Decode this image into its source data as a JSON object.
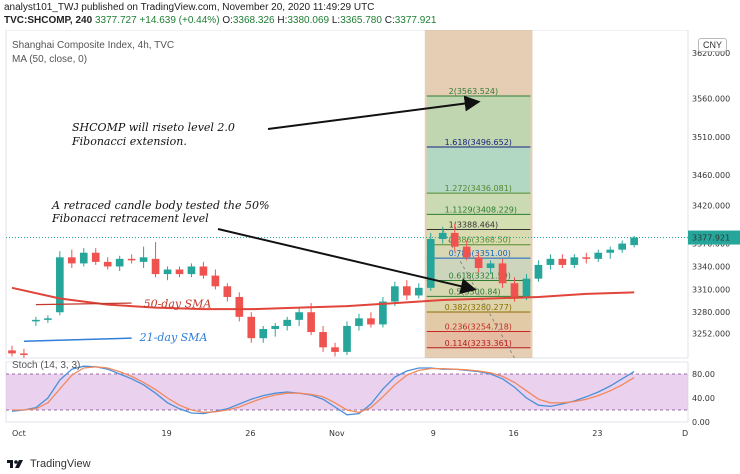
{
  "header": {
    "line1": "analyst101_TWJ published on TradingView.com, November 20, 2020 11:49:29 UTC",
    "symbol": "TVC:SHCOMP, 240",
    "last": "3377.727",
    "change": "+14.639 (+0.44%)",
    "o_label": "O:",
    "o": "3368.326",
    "h_label": "H:",
    "h": "3380.069",
    "l_label": "L:",
    "l": "3365.780",
    "c_label": "C:",
    "c": "3377.921"
  },
  "legend": {
    "title": "Shanghai Composite Index, 4h, TVC",
    "ma": "MA (50, close, 0)",
    "stoch": "Stoch (14, 3, 3)"
  },
  "currency": "CNY",
  "price_tag": "3377.921",
  "footer": {
    "brand": "TradingView"
  },
  "colors": {
    "up": "#26a69a",
    "down": "#ef5350",
    "ma": "#e0443a",
    "stoch_k": "#4a90d9",
    "stoch_d": "#f08a5d",
    "fib_band": "#d2a679"
  },
  "chart_data": [
    {
      "type": "candlestick",
      "title": "Shanghai Composite Index, 4h, TVC",
      "ylim": [
        3220,
        3650
      ],
      "y_ticks": [
        "3620.000",
        "3560.000",
        "3510.000",
        "3460.000",
        "3420.000",
        "3370.000",
        "3340.000",
        "3310.000",
        "3280.000",
        "3252.000"
      ],
      "x_ticks": [
        "Oct",
        "19",
        "26",
        "Nov",
        "9",
        "16",
        "23",
        "D"
      ],
      "x_tick_pos": [
        0.5,
        13,
        20,
        27,
        35.5,
        42,
        49,
        56.5
      ],
      "candles": [
        {
          "o": 3230,
          "h": 3236,
          "l": 3222,
          "c": 3226
        },
        {
          "o": 3226,
          "h": 3232,
          "l": 3220,
          "c": 3224
        },
        {
          "o": 3268,
          "h": 3274,
          "l": 3262,
          "c": 3270
        },
        {
          "o": 3270,
          "h": 3276,
          "l": 3266,
          "c": 3272
        },
        {
          "o": 3280,
          "h": 3360,
          "l": 3276,
          "c": 3352
        },
        {
          "o": 3352,
          "h": 3362,
          "l": 3338,
          "c": 3344
        },
        {
          "o": 3344,
          "h": 3364,
          "l": 3340,
          "c": 3358
        },
        {
          "o": 3358,
          "h": 3364,
          "l": 3342,
          "c": 3346
        },
        {
          "o": 3346,
          "h": 3352,
          "l": 3336,
          "c": 3340
        },
        {
          "o": 3340,
          "h": 3354,
          "l": 3334,
          "c": 3350
        },
        {
          "o": 3350,
          "h": 3356,
          "l": 3344,
          "c": 3348
        },
        {
          "o": 3346,
          "h": 3366,
          "l": 3338,
          "c": 3352
        },
        {
          "o": 3350,
          "h": 3372,
          "l": 3326,
          "c": 3330
        },
        {
          "o": 3330,
          "h": 3340,
          "l": 3322,
          "c": 3336
        },
        {
          "o": 3336,
          "h": 3340,
          "l": 3326,
          "c": 3330
        },
        {
          "o": 3330,
          "h": 3344,
          "l": 3326,
          "c": 3340
        },
        {
          "o": 3340,
          "h": 3346,
          "l": 3324,
          "c": 3328
        },
        {
          "o": 3328,
          "h": 3336,
          "l": 3310,
          "c": 3314
        },
        {
          "o": 3314,
          "h": 3318,
          "l": 3294,
          "c": 3300
        },
        {
          "o": 3300,
          "h": 3306,
          "l": 3268,
          "c": 3274
        },
        {
          "o": 3274,
          "h": 3280,
          "l": 3240,
          "c": 3246
        },
        {
          "o": 3246,
          "h": 3262,
          "l": 3240,
          "c": 3258
        },
        {
          "o": 3258,
          "h": 3266,
          "l": 3248,
          "c": 3262
        },
        {
          "o": 3262,
          "h": 3274,
          "l": 3256,
          "c": 3270
        },
        {
          "o": 3270,
          "h": 3286,
          "l": 3262,
          "c": 3280
        },
        {
          "o": 3280,
          "h": 3292,
          "l": 3250,
          "c": 3254
        },
        {
          "o": 3254,
          "h": 3262,
          "l": 3228,
          "c": 3234
        },
        {
          "o": 3234,
          "h": 3240,
          "l": 3222,
          "c": 3228
        },
        {
          "o": 3228,
          "h": 3268,
          "l": 3224,
          "c": 3262
        },
        {
          "o": 3262,
          "h": 3278,
          "l": 3256,
          "c": 3272
        },
        {
          "o": 3272,
          "h": 3280,
          "l": 3260,
          "c": 3264
        },
        {
          "o": 3264,
          "h": 3300,
          "l": 3260,
          "c": 3294
        },
        {
          "o": 3294,
          "h": 3320,
          "l": 3288,
          "c": 3314
        },
        {
          "o": 3314,
          "h": 3322,
          "l": 3296,
          "c": 3302
        },
        {
          "o": 3302,
          "h": 3318,
          "l": 3298,
          "c": 3312
        },
        {
          "o": 3312,
          "h": 3384,
          "l": 3308,
          "c": 3376
        },
        {
          "o": 3376,
          "h": 3392,
          "l": 3370,
          "c": 3384
        },
        {
          "o": 3384,
          "h": 3396,
          "l": 3360,
          "c": 3366
        },
        {
          "o": 3366,
          "h": 3374,
          "l": 3348,
          "c": 3352
        },
        {
          "o": 3352,
          "h": 3358,
          "l": 3332,
          "c": 3338
        },
        {
          "o": 3338,
          "h": 3348,
          "l": 3330,
          "c": 3344
        },
        {
          "o": 3344,
          "h": 3350,
          "l": 3312,
          "c": 3318
        },
        {
          "o": 3318,
          "h": 3326,
          "l": 3294,
          "c": 3300
        },
        {
          "o": 3300,
          "h": 3330,
          "l": 3296,
          "c": 3324
        },
        {
          "o": 3324,
          "h": 3348,
          "l": 3320,
          "c": 3342
        },
        {
          "o": 3342,
          "h": 3356,
          "l": 3336,
          "c": 3350
        },
        {
          "o": 3350,
          "h": 3356,
          "l": 3338,
          "c": 3342
        },
        {
          "o": 3342,
          "h": 3356,
          "l": 3338,
          "c": 3352
        },
        {
          "o": 3352,
          "h": 3358,
          "l": 3344,
          "c": 3350
        },
        {
          "o": 3350,
          "h": 3362,
          "l": 3346,
          "c": 3358
        },
        {
          "o": 3358,
          "h": 3366,
          "l": 3350,
          "c": 3362
        },
        {
          "o": 3362,
          "h": 3374,
          "l": 3358,
          "c": 3370
        },
        {
          "o": 3368,
          "h": 3380,
          "l": 3365,
          "c": 3378
        }
      ],
      "ma50": [
        [
          0,
          3312
        ],
        [
          4,
          3298
        ],
        [
          8,
          3290
        ],
        [
          12,
          3286
        ],
        [
          16,
          3284
        ],
        [
          20,
          3284
        ],
        [
          24,
          3286
        ],
        [
          28,
          3288
        ],
        [
          32,
          3292
        ],
        [
          36,
          3296
        ],
        [
          40,
          3298
        ],
        [
          44,
          3300
        ],
        [
          48,
          3304
        ],
        [
          52,
          3306
        ]
      ],
      "fibonacci": [
        {
          "label": "2(3563.524)",
          "value": 3563.524,
          "color": "#2e7d32"
        },
        {
          "label": "1.618(3496.652)",
          "value": 3496.652,
          "color": "#1a237e"
        },
        {
          "label": "1.272(3436.081)",
          "value": 3436.081,
          "color": "#558b2f"
        },
        {
          "label": "1.1129(3408.229)",
          "value": 3408.229,
          "color": "#2e7d32"
        },
        {
          "label": "1(3388.464)",
          "value": 3388.464,
          "color": "#333333"
        },
        {
          "label": "0.886(3368.50)",
          "value": 3368.5,
          "color": "#558b2f"
        },
        {
          "label": "0.786(3351.00)",
          "value": 3351.0,
          "color": "#1565c0"
        },
        {
          "label": "0.618(3321.59)",
          "value": 3321.59,
          "color": "#2e7d32"
        },
        {
          "label": "0.5(3300.84)",
          "value": 3300.84,
          "color": "#2e7d32"
        },
        {
          "label": "0.382(3280.277)",
          "value": 3280.277,
          "color": "#8d6e00"
        },
        {
          "label": "0.236(3254.718)",
          "value": 3254.718,
          "color": "#c62828"
        },
        {
          "label": "0.114(3233.361)",
          "value": 3233.361,
          "color": "#b71c1c"
        }
      ],
      "fib_range": {
        "start": 35,
        "end": 43
      },
      "annotations": [
        {
          "text": "SHCOMP will riseto level 2.0",
          "line": 1
        },
        {
          "text": "Fibonacci extension.",
          "line": 2
        },
        {
          "text": "A retraced candle body tested the 50%",
          "line": 3
        },
        {
          "text": "Fibonacci retracement level",
          "line": 4
        }
      ],
      "sma_labels": {
        "sma50": "50-day SMA",
        "sma21": "21-day SMA"
      }
    },
    {
      "type": "line",
      "title": "Stoch (14, 3, 3)",
      "ylim": [
        0,
        100
      ],
      "y_ticks": [
        "80.00",
        "40.00",
        "0.00"
      ],
      "bands": [
        20,
        80
      ],
      "series": [
        {
          "values": [
            18,
            20,
            24,
            40,
            70,
            88,
            93,
            92,
            88,
            80,
            72,
            62,
            48,
            32,
            22,
            15,
            14,
            18,
            22,
            30,
            38,
            44,
            48,
            50,
            48,
            45,
            38,
            25,
            12,
            14,
            30,
            55,
            75,
            85,
            90,
            90,
            88,
            88,
            86,
            84,
            80,
            72,
            58,
            40,
            28,
            26,
            30,
            35,
            42,
            50,
            60,
            72,
            84
          ]
        },
        {
          "values": [
            20,
            20,
            22,
            32,
            55,
            78,
            90,
            92,
            90,
            84,
            76,
            66,
            54,
            40,
            28,
            20,
            16,
            17,
            20,
            25,
            33,
            40,
            45,
            48,
            48,
            46,
            42,
            32,
            20,
            16,
            24,
            42,
            62,
            78,
            86,
            89,
            89,
            88,
            87,
            85,
            82,
            76,
            66,
            52,
            38,
            32,
            32,
            34,
            38,
            44,
            52,
            62,
            74
          ]
        }
      ]
    }
  ]
}
